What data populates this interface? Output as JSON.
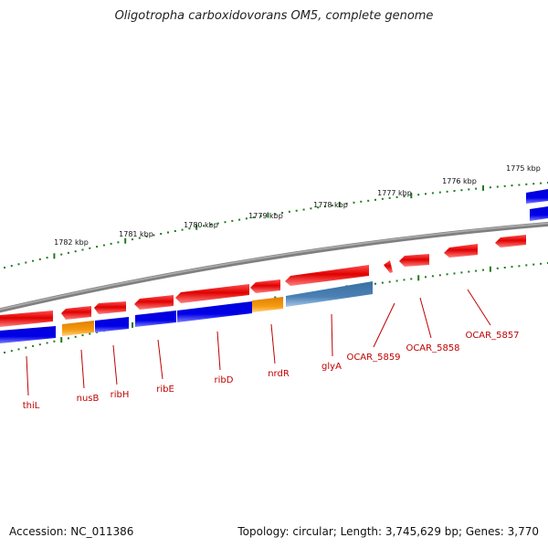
{
  "title": "Oligotropha carboxidovorans OM5, complete genome",
  "footer": {
    "accession": "Accession: NC_011386",
    "topology": "Topology: circular; Length: 3,745,629 bp; Genes: 3,770"
  },
  "colors": {
    "forward_cds": "#e00000",
    "reverse_cds": "#0000e0",
    "orange_cds": "#f08c00",
    "steel_cds": "#4a7fb0",
    "backbone": "#808080",
    "tick": "#207a20",
    "label": "#c00000"
  },
  "ticks": [
    {
      "label": "1775 kbp"
    },
    {
      "label": "1776 kbp"
    },
    {
      "label": "1777 kbp"
    },
    {
      "label": "1778 kbp"
    },
    {
      "label": "1779 kbp"
    },
    {
      "label": "1780 kbp"
    },
    {
      "label": "1781 kbp"
    },
    {
      "label": "1782 kbp"
    }
  ],
  "genes": [
    {
      "label": "thiL"
    },
    {
      "label": "nusB"
    },
    {
      "label": "ribH"
    },
    {
      "label": "ribE"
    },
    {
      "label": "ribD"
    },
    {
      "label": "nrdR"
    },
    {
      "label": "glyA"
    },
    {
      "label": "OCAR_5859"
    },
    {
      "label": "OCAR_5858"
    },
    {
      "label": "OCAR_5857"
    }
  ]
}
